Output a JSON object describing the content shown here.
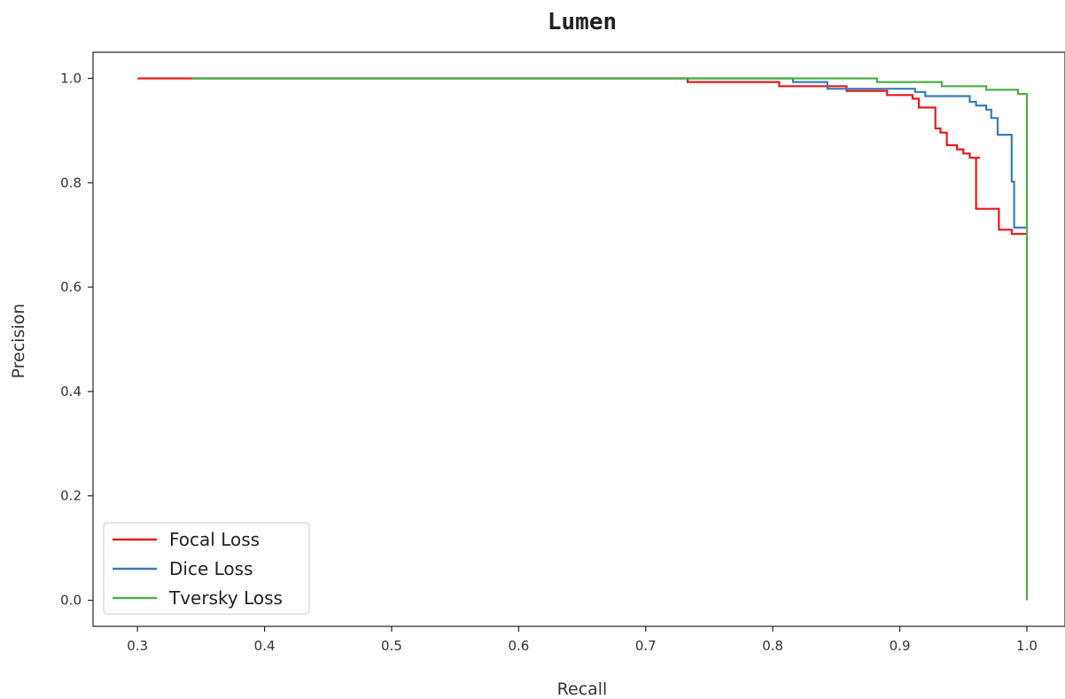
{
  "chart_data": {
    "type": "line",
    "title": "Lumen",
    "xlabel": "Recall",
    "ylabel": "Precision",
    "xlim": [
      0.265,
      1.03
    ],
    "ylim": [
      -0.05,
      1.05
    ],
    "xticks": [
      0.3,
      0.4,
      0.5,
      0.6,
      0.7,
      0.8,
      0.9,
      1.0
    ],
    "xtick_labels": [
      "0.3",
      "0.4",
      "0.5",
      "0.6",
      "0.7",
      "0.8",
      "0.9",
      "1.0"
    ],
    "yticks": [
      0.0,
      0.2,
      0.4,
      0.6,
      0.8,
      1.0
    ],
    "ytick_labels": [
      "0.0",
      "0.2",
      "0.4",
      "0.6",
      "0.8",
      "1.0"
    ],
    "grid": false,
    "legend_position": "bottom-left",
    "series": [
      {
        "name": "Focal Loss",
        "color": "#e41a1c",
        "x": [
          0.3,
          0.733,
          0.733,
          0.805,
          0.805,
          0.858,
          0.858,
          0.89,
          0.89,
          0.91,
          0.91,
          0.915,
          0.915,
          0.928,
          0.928,
          0.932,
          0.932,
          0.937,
          0.937,
          0.945,
          0.945,
          0.95,
          0.95,
          0.955,
          0.955,
          0.963,
          0.963,
          0.96,
          0.96,
          0.978,
          0.978,
          0.988,
          0.988,
          1.0
        ],
        "y": [
          1.0,
          1.0,
          0.993,
          0.993,
          0.985,
          0.985,
          0.976,
          0.976,
          0.968,
          0.968,
          0.961,
          0.961,
          0.944,
          0.944,
          0.904,
          0.904,
          0.896,
          0.896,
          0.872,
          0.872,
          0.864,
          0.864,
          0.856,
          0.856,
          0.848,
          0.848,
          0.848,
          0.848,
          0.75,
          0.75,
          0.71,
          0.71,
          0.702,
          0.702
        ]
      },
      {
        "name": "Dice Loss",
        "color": "#377eb8",
        "x": [
          0.343,
          0.816,
          0.816,
          0.843,
          0.843,
          0.912,
          0.912,
          0.92,
          0.92,
          0.955,
          0.955,
          0.96,
          0.96,
          0.968,
          0.968,
          0.972,
          0.972,
          0.977,
          0.977,
          0.982,
          0.982,
          0.988,
          0.988,
          0.99,
          0.99,
          1.0
        ],
        "y": [
          1.0,
          1.0,
          0.993,
          0.993,
          0.98,
          0.98,
          0.974,
          0.974,
          0.966,
          0.966,
          0.955,
          0.955,
          0.948,
          0.948,
          0.94,
          0.94,
          0.924,
          0.924,
          0.892,
          0.892,
          0.892,
          0.892,
          0.802,
          0.802,
          0.714,
          0.714
        ]
      },
      {
        "name": "Tversky Loss",
        "color": "#4daf4a",
        "x": [
          0.343,
          0.882,
          0.882,
          0.933,
          0.933,
          0.968,
          0.968,
          0.993,
          0.993,
          1.0,
          1.0
        ],
        "y": [
          1.0,
          1.0,
          0.993,
          0.993,
          0.985,
          0.985,
          0.978,
          0.978,
          0.97,
          0.97,
          0.0
        ]
      }
    ]
  }
}
